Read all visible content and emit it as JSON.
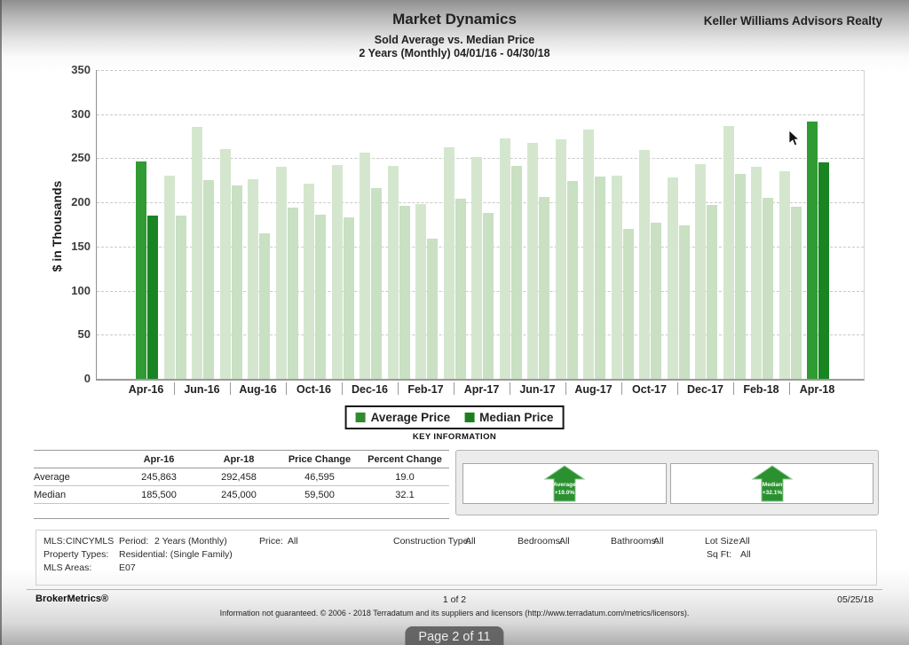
{
  "header": {
    "title": "Market Dynamics",
    "subtitle": "Sold Average vs. Median Price",
    "period": "2 Years (Monthly) 04/01/16 - 04/30/18",
    "company": "Keller Williams Advisors Realty"
  },
  "chart_data": {
    "type": "bar",
    "title": "Market Dynamics - Sold Average vs. Median Price",
    "ylabel": "$ in Thousands",
    "ylim": [
      0,
      350
    ],
    "y_ticks": [
      350,
      300,
      250,
      200,
      150,
      100,
      50,
      0
    ],
    "grid": "horizontal-dashed",
    "legend_position": "bottom",
    "x": [
      "Apr-16",
      "May-16",
      "Jun-16",
      "Jul-16",
      "Aug-16",
      "Sep-16",
      "Oct-16",
      "Nov-16",
      "Dec-16",
      "Jan-17",
      "Feb-17",
      "Mar-17",
      "Apr-17",
      "May-17",
      "Jun-17",
      "Jul-17",
      "Aug-17",
      "Sep-17",
      "Oct-17",
      "Nov-17",
      "Dec-17",
      "Jan-18",
      "Feb-18",
      "Mar-18",
      "Apr-18"
    ],
    "x_axis_labels": [
      "Apr-16",
      "Jun-16",
      "Aug-16",
      "Oct-16",
      "Dec-16",
      "Feb-17",
      "Apr-17",
      "Jun-17",
      "Aug-17",
      "Oct-17",
      "Dec-17",
      "Feb-18",
      "Apr-18"
    ],
    "series": [
      {
        "name": "Average Price",
        "values": [
          246,
          230,
          286,
          260,
          226,
          240,
          221,
          242,
          256,
          241,
          198,
          263,
          251,
          273,
          268,
          272,
          283,
          230,
          259,
          228,
          243,
          287,
          240,
          235,
          292
        ]
      },
      {
        "name": "Median Price",
        "values": [
          185,
          185,
          225,
          219,
          165,
          194,
          186,
          183,
          216,
          196,
          159,
          204,
          188,
          241,
          206,
          224,
          229,
          170,
          177,
          174,
          197,
          232,
          205,
          195,
          245
        ]
      }
    ],
    "highlight_indices": [
      0,
      24
    ],
    "colors": {
      "average_light": "#d4e7ce",
      "median_light": "#c9e0c3",
      "average_dark": "#309a33",
      "median_dark": "#188522",
      "legend_average": "#2e8b2e",
      "legend_median": "#1c7f1f",
      "arrow_green": "#2b9130"
    }
  },
  "legend": {
    "items": [
      {
        "label": "Average Price",
        "color": "#2e8b2e"
      },
      {
        "label": "Median Price",
        "color": "#1c7f1f"
      }
    ]
  },
  "key_information": {
    "heading": "KEY INFORMATION",
    "table": {
      "columns": [
        "",
        "Apr-16",
        "Apr-18",
        "Price Change",
        "Percent Change"
      ],
      "rows": [
        [
          "Average",
          "245,863",
          "292,458",
          "46,595",
          "19.0"
        ],
        [
          "Median",
          "185,500",
          "245,000",
          "59,500",
          "32.1"
        ]
      ]
    },
    "indicators": [
      {
        "label": "Average",
        "change": "+19.0%",
        "direction": "up"
      },
      {
        "label": "Median",
        "change": "+32.1%",
        "direction": "up"
      }
    ]
  },
  "filters": {
    "items": [
      {
        "label": "MLS:",
        "value": "CINCYMLS"
      },
      {
        "label": "Period:",
        "value": "2 Years (Monthly)"
      },
      {
        "label": "Price:",
        "value": "All"
      },
      {
        "label": "Construction Type:",
        "value": "All"
      },
      {
        "label": "Bedrooms:",
        "value": "All"
      },
      {
        "label": "Bathrooms:",
        "value": "All"
      },
      {
        "label": "Lot Size:",
        "value": "All"
      },
      {
        "label": "Property Types:",
        "value": "Residential: (Single Family)"
      },
      {
        "label": "Sq Ft:",
        "value": "All"
      },
      {
        "label": "MLS Areas:",
        "value": "E07"
      }
    ]
  },
  "footer": {
    "brand": "BrokerMetrics®",
    "page": "1 of 2",
    "date": "05/25/18",
    "disclaimer": "Information not guaranteed.  © 2006 - 2018 Terradatum and its suppliers and licensors (http://www.terradatum.com/metrics/licensors)."
  },
  "overlay": {
    "page_indicator": "Page 2 of 11"
  }
}
